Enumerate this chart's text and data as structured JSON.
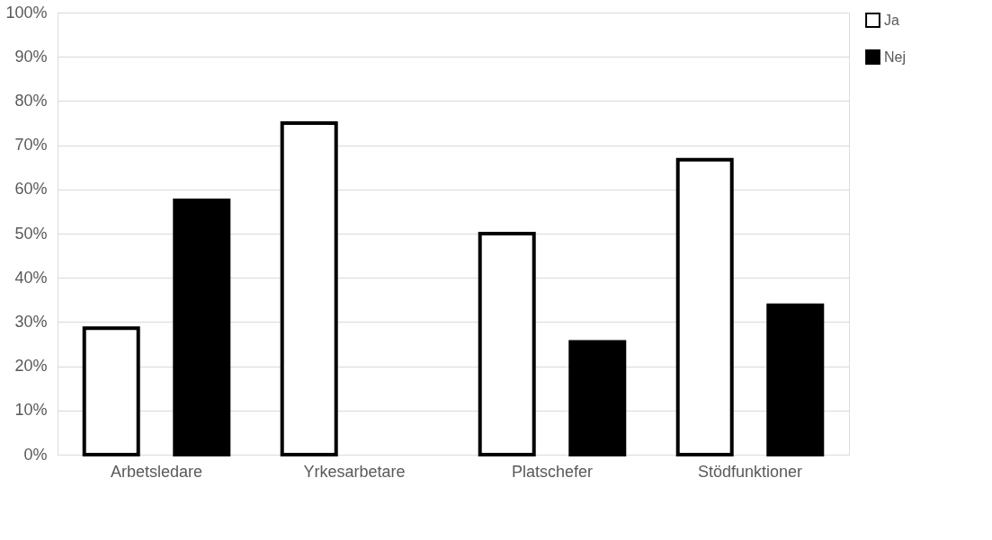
{
  "chart_data": {
    "type": "bar",
    "categories": [
      "Arbetsledare",
      "Yrkesarbetare",
      "Platschefer",
      "Stödfunktioner"
    ],
    "series": [
      {
        "name": "Ja",
        "color": "#ffffff",
        "values": [
          28.6,
          75,
          50,
          66.7
        ]
      },
      {
        "name": "Nej",
        "color": "#000000",
        "values": [
          57.5,
          null,
          25.5,
          33.8
        ]
      }
    ],
    "ylim": [
      0,
      100
    ],
    "yticks": [
      {
        "value": 0,
        "label": "0%"
      },
      {
        "value": 10,
        "label": "10%"
      },
      {
        "value": 20,
        "label": "20%"
      },
      {
        "value": 30,
        "label": "30%"
      },
      {
        "value": 40,
        "label": "40%"
      },
      {
        "value": 50,
        "label": "50%"
      },
      {
        "value": 60,
        "label": "60%"
      },
      {
        "value": 70,
        "label": "70%"
      },
      {
        "value": 80,
        "label": "80%"
      },
      {
        "value": 90,
        "label": "90%"
      },
      {
        "value": 100,
        "label": "100%"
      }
    ],
    "grid": "y",
    "legend": "right"
  }
}
